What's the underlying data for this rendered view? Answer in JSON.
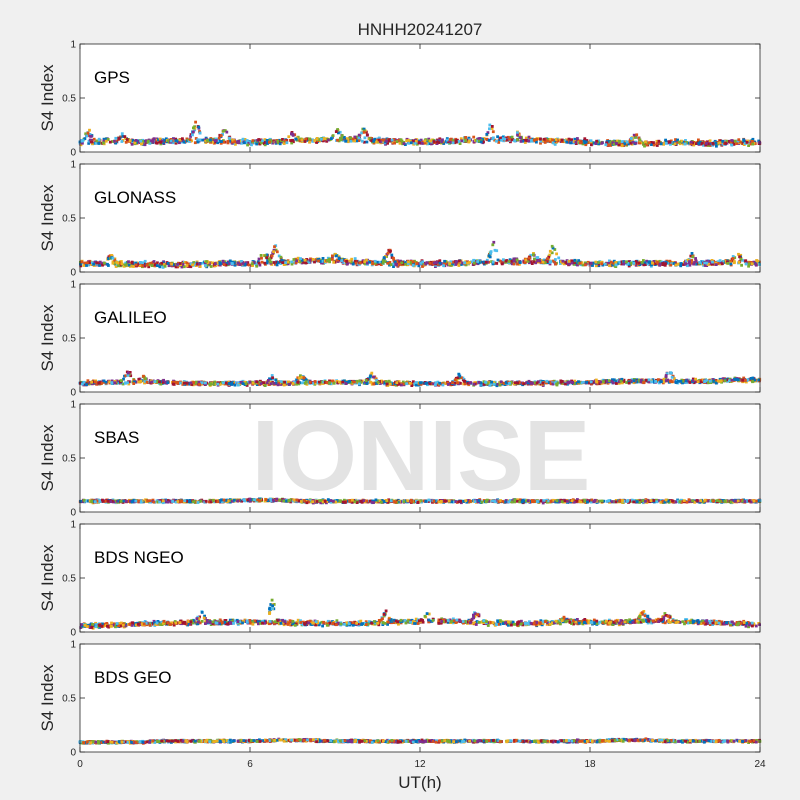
{
  "chart_data": {
    "type": "scatter",
    "title": "HNHH20241207",
    "xlabel": "UT(h)",
    "ylabel": "S4 Index",
    "xlim": [
      0,
      24
    ],
    "ylim": [
      0,
      1
    ],
    "xticks": [
      0,
      6,
      12,
      18,
      24
    ],
    "yticks": [
      0,
      0.5,
      1
    ],
    "ytick_labels": [
      "0",
      "0.5",
      "1"
    ],
    "grid": false,
    "watermark": "IONISE",
    "series_colors": [
      "#0072BD",
      "#D95319",
      "#EDB120",
      "#7E2F8E",
      "#77AC30",
      "#4DBEEE",
      "#A2142F"
    ],
    "panels": [
      {
        "label": "GPS",
        "baseline": [
          0.09,
          0.1,
          0.09,
          0.1,
          0.11,
          0.1,
          0.09,
          0.1,
          0.11,
          0.12,
          0.11,
          0.1,
          0.09,
          0.1,
          0.11,
          0.12,
          0.11,
          0.1,
          0.09,
          0.08,
          0.08,
          0.09,
          0.08,
          0.09,
          0.09
        ],
        "spread": 0.035,
        "peaks": [
          [
            0.3,
            0.22
          ],
          [
            1.5,
            0.18
          ],
          [
            4.1,
            0.3
          ],
          [
            5.1,
            0.26
          ],
          [
            7.5,
            0.2
          ],
          [
            9.1,
            0.22
          ],
          [
            10.0,
            0.25
          ],
          [
            14.5,
            0.3
          ],
          [
            15.4,
            0.2
          ],
          [
            19.6,
            0.19
          ]
        ]
      },
      {
        "label": "GLONASS",
        "baseline": [
          0.08,
          0.08,
          0.07,
          0.07,
          0.07,
          0.08,
          0.08,
          0.09,
          0.1,
          0.1,
          0.09,
          0.08,
          0.08,
          0.08,
          0.09,
          0.09,
          0.1,
          0.09,
          0.08,
          0.08,
          0.08,
          0.08,
          0.08,
          0.09,
          0.08
        ],
        "spread": 0.035,
        "peaks": [
          [
            6.9,
            0.3
          ],
          [
            6.5,
            0.22
          ],
          [
            9.0,
            0.2
          ],
          [
            10.9,
            0.23
          ],
          [
            14.6,
            0.28
          ],
          [
            16.7,
            0.28
          ],
          [
            16.0,
            0.2
          ],
          [
            21.6,
            0.18
          ],
          [
            23.2,
            0.22
          ],
          [
            1.1,
            0.17
          ]
        ]
      },
      {
        "label": "GALILEO",
        "baseline": [
          0.08,
          0.09,
          0.09,
          0.09,
          0.08,
          0.08,
          0.08,
          0.08,
          0.09,
          0.09,
          0.09,
          0.08,
          0.08,
          0.08,
          0.08,
          0.08,
          0.08,
          0.09,
          0.09,
          0.1,
          0.1,
          0.1,
          0.1,
          0.11,
          0.11
        ],
        "spread": 0.025,
        "peaks": [
          [
            1.7,
            0.22
          ],
          [
            2.2,
            0.16
          ],
          [
            6.8,
            0.16
          ],
          [
            7.8,
            0.17
          ],
          [
            10.3,
            0.18
          ],
          [
            13.4,
            0.18
          ],
          [
            20.8,
            0.21
          ]
        ]
      },
      {
        "label": "SBAS",
        "baseline": [
          0.1,
          0.1,
          0.1,
          0.1,
          0.1,
          0.1,
          0.11,
          0.11,
          0.1,
          0.1,
          0.1,
          0.1,
          0.1,
          0.1,
          0.1,
          0.1,
          0.1,
          0.1,
          0.1,
          0.1,
          0.1,
          0.1,
          0.1,
          0.1,
          0.1
        ],
        "spread": 0.018,
        "peaks": []
      },
      {
        "label": "BDS NGEO",
        "baseline": [
          0.06,
          0.06,
          0.07,
          0.08,
          0.09,
          0.09,
          0.09,
          0.09,
          0.08,
          0.08,
          0.08,
          0.09,
          0.1,
          0.1,
          0.09,
          0.08,
          0.08,
          0.09,
          0.09,
          0.09,
          0.1,
          0.1,
          0.09,
          0.08,
          0.07
        ],
        "spread": 0.03,
        "peaks": [
          [
            6.8,
            0.32
          ],
          [
            4.3,
            0.2
          ],
          [
            10.8,
            0.2
          ],
          [
            14.0,
            0.22
          ],
          [
            12.3,
            0.2
          ],
          [
            19.9,
            0.22
          ],
          [
            20.7,
            0.2
          ],
          [
            17.1,
            0.15
          ]
        ]
      },
      {
        "label": "BDS GEO",
        "baseline": [
          0.09,
          0.09,
          0.09,
          0.1,
          0.1,
          0.1,
          0.1,
          0.11,
          0.11,
          0.1,
          0.1,
          0.1,
          0.1,
          0.1,
          0.1,
          0.1,
          0.1,
          0.1,
          0.1,
          0.11,
          0.11,
          0.1,
          0.1,
          0.1,
          0.1
        ],
        "spread": 0.015,
        "peaks": []
      }
    ]
  }
}
